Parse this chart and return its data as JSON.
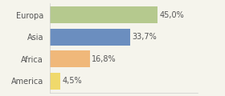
{
  "categories": [
    "Europa",
    "Asia",
    "Africa",
    "America"
  ],
  "values": [
    45.0,
    33.7,
    16.8,
    4.5
  ],
  "labels": [
    "45,0%",
    "33,7%",
    "16,8%",
    "4,5%"
  ],
  "bar_colors": [
    "#b5c98e",
    "#6b8ebf",
    "#f0b87a",
    "#f0d96b"
  ],
  "background_color": "#f5f4ec",
  "bar_height": 0.75,
  "xlim": [
    0,
    62
  ],
  "label_fontsize": 7.0,
  "tick_fontsize": 7.0,
  "figsize": [
    2.8,
    1.2
  ],
  "dpi": 100
}
